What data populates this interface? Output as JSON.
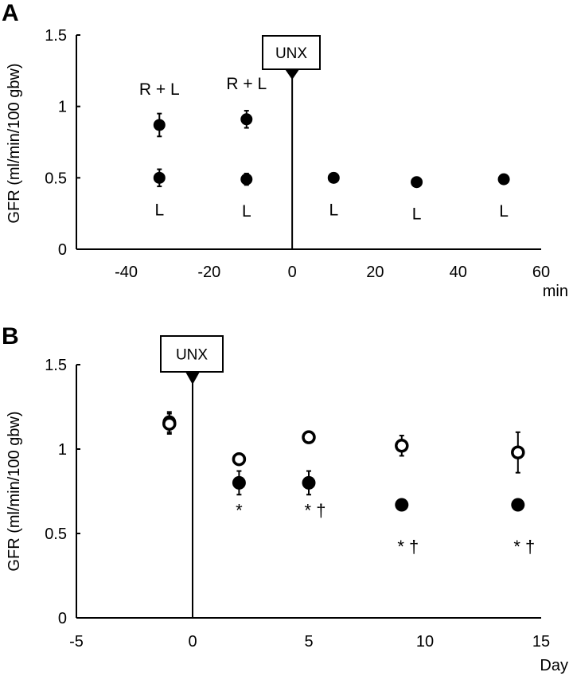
{
  "chart_data": [
    {
      "panel": "A",
      "type": "scatter",
      "ylabel": "GFR (ml/min/100 gbw)",
      "xlabel": "min",
      "xlim": [
        -52,
        60
      ],
      "ylim": [
        0,
        1.5
      ],
      "xticks": [
        "-40",
        "-20",
        "0",
        "20",
        "40",
        "60"
      ],
      "xtick_values": [
        -40,
        -20,
        0,
        20,
        40,
        60
      ],
      "yticks": [
        "0",
        "0.5",
        "1",
        "1.5"
      ],
      "ytick_values": [
        0,
        0.5,
        1,
        1.5
      ],
      "event": {
        "label": "UNX",
        "x": 0
      },
      "series": [
        {
          "name": "R + L",
          "marker": "filled",
          "x": [
            -32,
            -11
          ],
          "y": [
            0.87,
            0.91
          ],
          "err": [
            0.08,
            0.06
          ],
          "labels": [
            "R + L",
            "R + L"
          ],
          "label_pos": "above"
        },
        {
          "name": "L",
          "marker": "filled",
          "x": [
            -32,
            -11,
            10,
            30,
            51
          ],
          "y": [
            0.5,
            0.49,
            0.5,
            0.47,
            0.49
          ],
          "err": [
            0.06,
            0.04,
            0.02,
            0.02,
            0.02
          ],
          "labels": [
            "L",
            "L",
            "L",
            "L",
            "L"
          ],
          "label_pos": "below"
        }
      ]
    },
    {
      "panel": "B",
      "type": "scatter",
      "ylabel": "GFR (ml/min/100 gbw)",
      "xlabel": "Day",
      "xlim": [
        -5,
        15
      ],
      "ylim": [
        0,
        1.5
      ],
      "xticks": [
        "-5",
        "0",
        "5",
        "10",
        "15"
      ],
      "xtick_values": [
        -5,
        0,
        5,
        10,
        15
      ],
      "yticks": [
        "0",
        "0.5",
        "1",
        "1.5"
      ],
      "ytick_values": [
        0,
        0.5,
        1,
        1.5
      ],
      "event": {
        "label": "UNX",
        "x": 0
      },
      "series": [
        {
          "name": "filled",
          "marker": "filled",
          "x": [
            -1,
            2,
            5,
            9,
            14
          ],
          "y": [
            1.16,
            0.8,
            0.8,
            0.67,
            0.67
          ],
          "err": [
            0.06,
            0.07,
            0.07,
            0.0,
            0.0
          ],
          "labels": [
            "",
            "*",
            "* †",
            "* †",
            "* †"
          ],
          "label_pos": "below"
        },
        {
          "name": "open",
          "marker": "open",
          "x": [
            -1,
            2,
            5,
            9,
            14
          ],
          "y": [
            1.15,
            0.94,
            1.07,
            1.02,
            0.98
          ],
          "err": [
            0.06,
            0.02,
            0.03,
            0.06,
            0.12
          ]
        }
      ]
    }
  ],
  "panel_labels": [
    "A",
    "B"
  ]
}
